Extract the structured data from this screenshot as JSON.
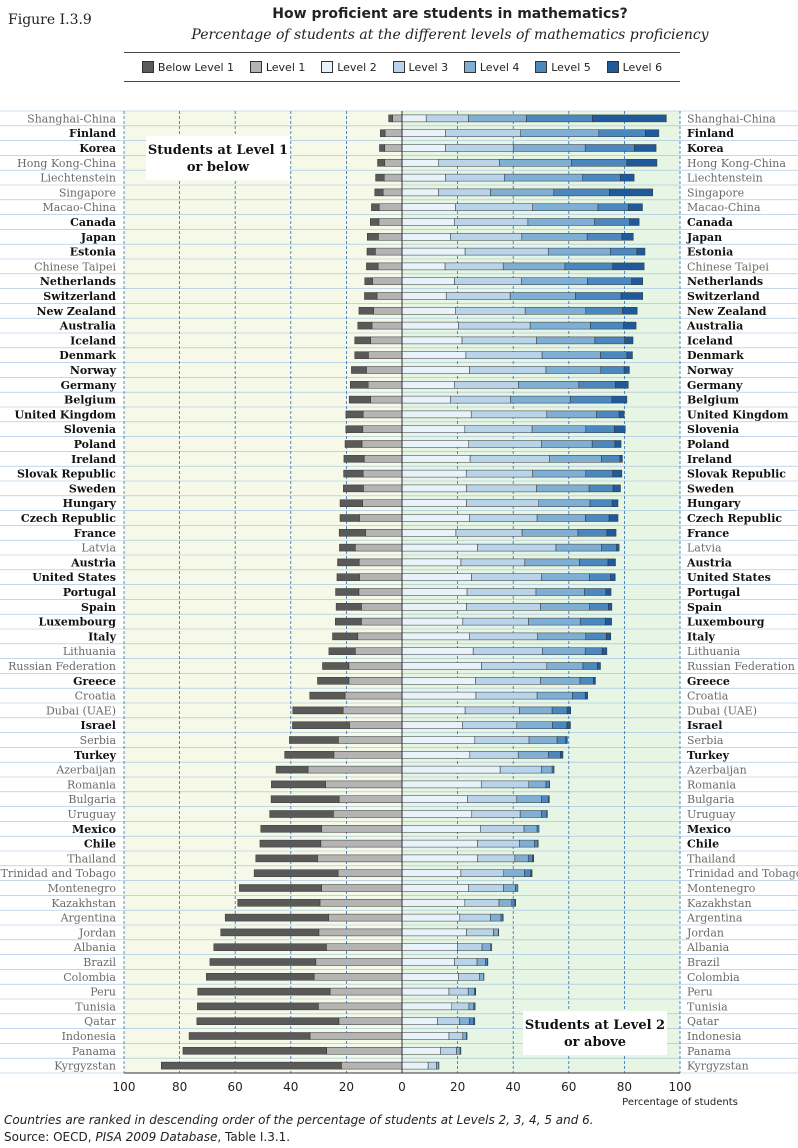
{
  "figure_label": "Figure I.3.9",
  "colors": {
    "below_level_1": "#5a5a5a",
    "level_1": "#b4b4b4",
    "level_2": "#e8f2fb",
    "level_3": "#b9d3ea",
    "level_4": "#80afd6",
    "level_5": "#4b88c0",
    "level_6": "#1e5a9c",
    "left_bg": "#f6f9e8",
    "right_bg": "#e6f5e4"
  },
  "chart_data": {
    "type": "bar",
    "stacked": "diverging",
    "title": "How proficient are students in mathematics?",
    "subtitle": "Percentage of students at the different levels of mathematics proficiency",
    "xlabel": "Percentage of students",
    "xlim": [
      -100,
      100
    ],
    "x_ticks": [
      "100",
      "80",
      "60",
      "40",
      "20",
      "0",
      "20",
      "40",
      "60",
      "80",
      "100"
    ],
    "levels": [
      "Below Level 1",
      "Level 1",
      "Level 2",
      "Level 3",
      "Level 4",
      "Level 5",
      "Level 6"
    ],
    "annotations": [
      "Students at Level 1 or below",
      "Students at Level 2 or above"
    ],
    "countries": [
      {
        "name": "Shanghai-China",
        "oecd": false,
        "values": [
          1.4,
          3.4,
          8.7,
          15.2,
          20.8,
          23.8,
          26.6
        ]
      },
      {
        "name": "Finland",
        "oecd": true,
        "values": [
          1.7,
          6.1,
          15.6,
          27.1,
          28.1,
          16.7,
          4.9
        ]
      },
      {
        "name": "Korea",
        "oecd": true,
        "values": [
          1.9,
          6.2,
          15.6,
          24.4,
          25.9,
          17.7,
          7.8
        ]
      },
      {
        "name": "Hong Kong-China",
        "oecd": false,
        "values": [
          2.6,
          6.2,
          13.2,
          21.9,
          25.9,
          19.9,
          10.8
        ]
      },
      {
        "name": "Liechtenstein",
        "oecd": false,
        "values": [
          3.1,
          6.4,
          15.6,
          21.2,
          28.2,
          13.6,
          4.9
        ]
      },
      {
        "name": "Singapore",
        "oecd": false,
        "values": [
          3.0,
          6.8,
          13.1,
          18.7,
          22.8,
          20.0,
          15.6
        ]
      },
      {
        "name": "Macao-China",
        "oecd": false,
        "values": [
          2.8,
          8.2,
          19.2,
          27.8,
          23.5,
          10.9,
          5.1
        ]
      },
      {
        "name": "Canada",
        "oecd": true,
        "values": [
          3.1,
          8.3,
          18.8,
          26.5,
          24.0,
          12.6,
          3.4
        ]
      },
      {
        "name": "Japan",
        "oecd": true,
        "values": [
          4.0,
          8.5,
          17.4,
          25.7,
          23.5,
          12.5,
          4.1
        ]
      },
      {
        "name": "Estonia",
        "oecd": true,
        "values": [
          3.0,
          9.6,
          22.7,
          29.9,
          22.3,
          9.6,
          2.9
        ]
      },
      {
        "name": "Chinese Taipei",
        "oecd": false,
        "values": [
          4.2,
          8.6,
          15.5,
          20.9,
          22.2,
          17.2,
          11.3
        ]
      },
      {
        "name": "Netherlands",
        "oecd": true,
        "values": [
          2.8,
          10.6,
          18.9,
          24.0,
          23.8,
          15.9,
          4.0
        ]
      },
      {
        "name": "Switzerland",
        "oecd": true,
        "values": [
          4.5,
          9.0,
          15.9,
          23.0,
          23.5,
          16.4,
          7.8
        ]
      },
      {
        "name": "New Zealand",
        "oecd": true,
        "values": [
          5.3,
          10.2,
          19.3,
          25.0,
          21.8,
          13.2,
          5.3
        ]
      },
      {
        "name": "Australia",
        "oecd": true,
        "values": [
          5.1,
          10.8,
          20.3,
          25.8,
          21.7,
          11.9,
          4.5
        ]
      },
      {
        "name": "Iceland",
        "oecd": true,
        "values": [
          5.7,
          11.3,
          21.6,
          26.8,
          21.0,
          10.7,
          3.0
        ]
      },
      {
        "name": "Denmark",
        "oecd": true,
        "values": [
          4.9,
          12.1,
          23.0,
          27.4,
          21.0,
          9.5,
          2.0
        ]
      },
      {
        "name": "Norway",
        "oecd": true,
        "values": [
          5.4,
          12.8,
          24.3,
          27.5,
          19.7,
          8.4,
          1.9
        ]
      },
      {
        "name": "Germany",
        "oecd": true,
        "values": [
          6.4,
          12.2,
          18.8,
          23.1,
          21.7,
          13.2,
          4.6
        ]
      },
      {
        "name": "Belgium",
        "oecd": true,
        "values": [
          7.7,
          11.3,
          17.4,
          21.6,
          21.5,
          15.0,
          5.4
        ]
      },
      {
        "name": "United Kingdom",
        "oecd": true,
        "values": [
          6.2,
          14.0,
          24.9,
          27.2,
          17.9,
          8.1,
          1.8
        ]
      },
      {
        "name": "Slovenia",
        "oecd": true,
        "values": [
          6.1,
          14.1,
          22.6,
          24.2,
          19.3,
          10.3,
          3.9
        ]
      },
      {
        "name": "Poland",
        "oecd": true,
        "values": [
          6.1,
          14.4,
          24.0,
          26.1,
          18.3,
          8.2,
          2.2
        ]
      },
      {
        "name": "Ireland",
        "oecd": true,
        "values": [
          7.3,
          13.6,
          24.5,
          28.6,
          18.6,
          6.7,
          0.9
        ]
      },
      {
        "name": "Slovak Republic",
        "oecd": true,
        "values": [
          7.0,
          14.0,
          23.1,
          23.9,
          19.1,
          9.7,
          3.3
        ]
      },
      {
        "name": "Sweden",
        "oecd": true,
        "values": [
          7.2,
          13.9,
          23.2,
          25.2,
          18.9,
          8.6,
          2.7
        ]
      },
      {
        "name": "Hungary",
        "oecd": true,
        "values": [
          8.1,
          14.2,
          23.2,
          26.0,
          18.4,
          8.0,
          2.1
        ]
      },
      {
        "name": "Czech Republic",
        "oecd": true,
        "values": [
          7.0,
          15.3,
          24.2,
          24.4,
          17.4,
          8.5,
          3.2
        ]
      },
      {
        "name": "France",
        "oecd": true,
        "values": [
          9.5,
          13.1,
          19.4,
          23.8,
          20.1,
          10.4,
          3.3
        ]
      },
      {
        "name": "Latvia",
        "oecd": false,
        "values": [
          5.7,
          16.8,
          27.2,
          28.2,
          16.4,
          5.4,
          0.9
        ]
      },
      {
        "name": "Austria",
        "oecd": true,
        "values": [
          7.8,
          15.4,
          21.2,
          23.0,
          19.6,
          10.3,
          2.7
        ]
      },
      {
        "name": "United States",
        "oecd": true,
        "values": [
          8.1,
          15.3,
          25.0,
          25.1,
          17.3,
          7.6,
          1.7
        ]
      },
      {
        "name": "Portugal",
        "oecd": true,
        "values": [
          8.4,
          15.5,
          23.4,
          24.8,
          17.4,
          7.7,
          1.9
        ]
      },
      {
        "name": "Spain",
        "oecd": true,
        "values": [
          9.1,
          14.6,
          23.2,
          26.6,
          17.7,
          6.7,
          1.3
        ]
      },
      {
        "name": "Luxembourg",
        "oecd": true,
        "values": [
          9.4,
          14.6,
          21.9,
          23.6,
          18.6,
          9.0,
          2.3
        ]
      },
      {
        "name": "Italy",
        "oecd": true,
        "values": [
          9.1,
          15.9,
          24.2,
          24.6,
          17.3,
          7.4,
          1.6
        ]
      },
      {
        "name": "Lithuania",
        "oecd": false,
        "values": [
          9.5,
          16.8,
          25.6,
          24.9,
          15.4,
          6.1,
          1.7
        ]
      },
      {
        "name": "Russian Federation",
        "oecd": false,
        "values": [
          9.5,
          19.1,
          28.6,
          23.5,
          13.0,
          5.2,
          1.1
        ]
      },
      {
        "name": "Greece",
        "oecd": true,
        "values": [
          11.3,
          19.1,
          26.4,
          23.4,
          14.2,
          4.8,
          0.8
        ]
      },
      {
        "name": "Croatia",
        "oecd": false,
        "values": [
          12.7,
          20.5,
          26.6,
          22.0,
          12.7,
          4.6,
          0.9
        ]
      },
      {
        "name": "Dubai (UAE)",
        "oecd": false,
        "values": [
          18.1,
          21.2,
          22.7,
          19.6,
          11.7,
          5.4,
          1.3
        ]
      },
      {
        "name": "Israel",
        "oecd": true,
        "values": [
          20.5,
          18.9,
          21.7,
          19.6,
          12.8,
          5.2,
          1.3
        ]
      },
      {
        "name": "Serbia",
        "oecd": false,
        "values": [
          17.6,
          22.9,
          26.2,
          19.5,
          10.1,
          3.1,
          0.6
        ]
      },
      {
        "name": "Turkey",
        "oecd": true,
        "values": [
          17.7,
          24.5,
          24.4,
          17.4,
          10.8,
          4.4,
          0.9
        ]
      },
      {
        "name": "Azerbaijan",
        "oecd": false,
        "values": [
          11.5,
          33.8,
          35.3,
          14.8,
          3.9,
          0.6,
          0.1
        ]
      },
      {
        "name": "Romania",
        "oecd": false,
        "values": [
          19.5,
          27.5,
          28.5,
          17.1,
          6.2,
          1.2,
          0.1
        ]
      },
      {
        "name": "Bulgaria",
        "oecd": false,
        "values": [
          24.5,
          22.6,
          23.6,
          17.7,
          8.8,
          2.6,
          0.3
        ]
      },
      {
        "name": "Uruguay",
        "oecd": false,
        "values": [
          22.9,
          24.7,
          25.1,
          17.4,
          7.7,
          1.9,
          0.2
        ]
      },
      {
        "name": "Mexico",
        "oecd": true,
        "values": [
          21.9,
          28.9,
          28.3,
          15.6,
          4.7,
          0.7,
          0.0
        ]
      },
      {
        "name": "Chile",
        "oecd": true,
        "values": [
          21.9,
          29.2,
          27.2,
          15.1,
          5.4,
          1.2,
          0.1
        ]
      },
      {
        "name": "Thailand",
        "oecd": false,
        "values": [
          22.2,
          30.4,
          27.1,
          13.5,
          4.8,
          1.6,
          0.4
        ]
      },
      {
        "name": "Trinidad and Tobago",
        "oecd": false,
        "values": [
          30.2,
          23.0,
          21.2,
          15.4,
          7.4,
          2.3,
          0.5
        ]
      },
      {
        "name": "Montenegro",
        "oecd": false,
        "values": [
          29.6,
          28.9,
          23.9,
          12.6,
          4.3,
          0.9,
          0.0
        ]
      },
      {
        "name": "Kazakhstan",
        "oecd": false,
        "values": [
          29.6,
          29.5,
          22.6,
          12.3,
          4.6,
          1.1,
          0.3
        ]
      },
      {
        "name": "Argentina",
        "oecd": false,
        "values": [
          37.2,
          26.4,
          20.8,
          11.0,
          3.8,
          0.7,
          0.1
        ]
      },
      {
        "name": "Jordan",
        "oecd": false,
        "values": [
          35.3,
          29.9,
          23.2,
          9.7,
          1.8,
          0.1,
          0.0
        ]
      },
      {
        "name": "Albania",
        "oecd": false,
        "values": [
          40.5,
          27.2,
          19.9,
          8.9,
          3.1,
          0.4,
          0.0
        ]
      },
      {
        "name": "Brazil",
        "oecd": false,
        "values": [
          38.1,
          31.0,
          18.9,
          8.1,
          3.0,
          0.8,
          0.1
        ]
      },
      {
        "name": "Colombia",
        "oecd": false,
        "values": [
          38.8,
          31.6,
          20.3,
          7.5,
          1.6,
          0.1,
          0.0
        ]
      },
      {
        "name": "Peru",
        "oecd": false,
        "values": [
          47.6,
          25.9,
          16.9,
          6.9,
          2.2,
          0.4,
          0.1
        ]
      },
      {
        "name": "Tunisia",
        "oecd": false,
        "values": [
          43.5,
          30.1,
          17.9,
          6.2,
          1.7,
          0.4,
          0.1
        ]
      },
      {
        "name": "Qatar",
        "oecd": false,
        "values": [
          51.1,
          22.7,
          12.8,
          7.8,
          3.6,
          1.6,
          0.4
        ]
      },
      {
        "name": "Indonesia",
        "oecd": false,
        "values": [
          43.5,
          33.1,
          16.9,
          5.0,
          1.2,
          0.3,
          0.0
        ]
      },
      {
        "name": "Panama",
        "oecd": false,
        "values": [
          51.7,
          27.1,
          13.9,
          5.7,
          1.3,
          0.3,
          0.0
        ]
      },
      {
        "name": "Kyrgyzstan",
        "oecd": false,
        "values": [
          64.8,
          21.8,
          9.4,
          3.0,
          0.8,
          0.1,
          0.0
        ]
      }
    ]
  },
  "footnote": "Countries are ranked in descending order of the percentage of students at Levels 2, 3, 4, 5 and 6.",
  "source_prefix": "Source: OECD, ",
  "source_italic": "PISA 2009 Database",
  "source_suffix": ", Table I.3.1."
}
